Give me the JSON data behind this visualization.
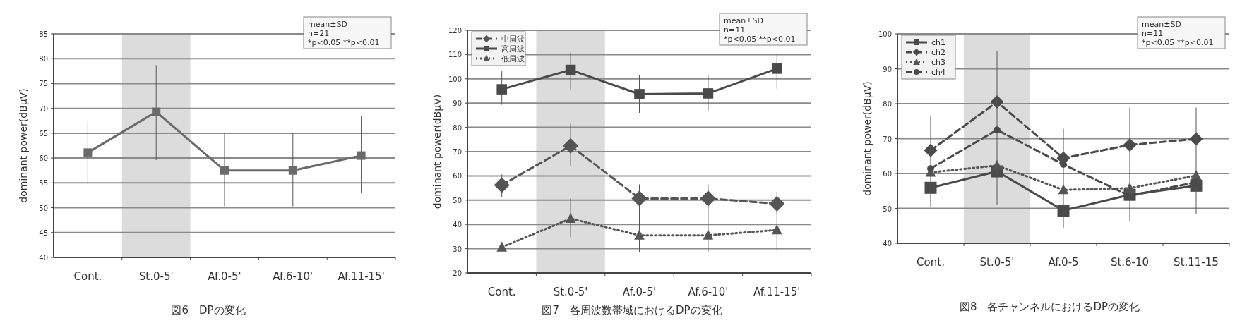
{
  "chart_data": [
    {
      "type": "line",
      "title": "図6　DPの変化",
      "ylabel": "dominant power(dBμV)",
      "categories": [
        "Cont.",
        "St.0-5'",
        "Af.0-5'",
        "Af.6-10'",
        "Af.11-15'"
      ],
      "ylim": [
        40,
        85
      ],
      "yticks": [
        40,
        45,
        50,
        55,
        60,
        65,
        70,
        75,
        80,
        85
      ],
      "grid": "y",
      "annotations": [
        "mean±SD",
        "n=21",
        "*p<0.05 **p<0.01"
      ],
      "bands": [
        {
          "axis": "x",
          "from": "St.0-5'",
          "to": "St.0-5'",
          "color": "#dcdcdc"
        }
      ],
      "series": [
        {
          "color": "#6a6a6a",
          "marker": "square",
          "line_style": "solid",
          "values": [
            61.1,
            69.3,
            57.5,
            57.5,
            60.5
          ],
          "errors": [
            [
              54.8,
              67.4
            ],
            [
              59.6,
              78.7
            ],
            [
              50.3,
              65
            ],
            [
              50.3,
              65
            ],
            [
              52.9,
              68.5
            ]
          ]
        }
      ]
    },
    {
      "type": "line",
      "title": "図7　各周波数帯域におけるDPの変化",
      "ylabel": "dominant power(dBμV)",
      "categories": [
        "Cont.",
        "St.0-5'",
        "Af.0-5'",
        "Af.6-10'",
        "Af.11-15'"
      ],
      "ylim": [
        20,
        120
      ],
      "yticks": [
        20,
        30,
        40,
        50,
        60,
        70,
        80,
        90,
        100,
        110,
        120
      ],
      "grid": "y",
      "legend": "top left",
      "annotations": [
        "mean±SD",
        "n=11",
        "*p<0.05 **p<0.01"
      ],
      "bands": [
        {
          "axis": "x",
          "from": "St.0-5'",
          "to": "St.0-5'",
          "color": "#dcdcdc"
        }
      ],
      "series": [
        {
          "name": "中周波",
          "color": "#555555",
          "marker": "diamond",
          "line_style": "dashed",
          "values": [
            56.2,
            72.4,
            50.7,
            50.7,
            48.5
          ],
          "errors": [
            [
              51.2,
              60.6
            ],
            [
              63.9,
              81.6
            ],
            [
              43,
              56.5
            ],
            [
              43,
              56.5
            ],
            [
              44.1,
              53.4
            ]
          ]
        },
        {
          "name": "高周波",
          "color": "#4a4a4a",
          "marker": "square",
          "line_style": "solid",
          "values": [
            95.7,
            103.7,
            93.7,
            94,
            104.2
          ],
          "errors": [
            [
              89.3,
              103.1
            ],
            [
              95.7,
              110.8
            ],
            [
              86,
              101.5
            ],
            [
              86.9,
              101.5
            ],
            [
              95.9,
              110.3
            ]
          ]
        },
        {
          "name": "低周波",
          "color": "#555555",
          "marker": "triangle",
          "line_style": "dotted",
          "values": [
            30.6,
            42.4,
            35.5,
            35.5,
            37.7
          ],
          "errors": [
            null,
            [
              34.7,
              50.7
            ],
            [
              28.6,
              43
            ],
            [
              28.6,
              43
            ],
            [
              29.2,
              45.2
            ]
          ]
        }
      ]
    },
    {
      "type": "line",
      "title": "図8　各チャンネルにおけるDPの変化",
      "ylabel": "dominant power(dBμV)",
      "categories": [
        "Cont.",
        "St.0-5'",
        "Af.0-5",
        "St.6-10",
        "St.11-15"
      ],
      "ylim": [
        40,
        100
      ],
      "yticks": [
        40,
        50,
        60,
        70,
        80,
        90,
        100
      ],
      "grid": "y",
      "legend": "top left",
      "annotations": [
        "mean±SD",
        "n=11",
        "*p<0.05 **p<0.01"
      ],
      "bands": [
        {
          "axis": "x",
          "from": "St.0-5'",
          "to": "St.0-5'",
          "color": "#dcdcdc"
        }
      ],
      "series": [
        {
          "name": "ch1",
          "color": "#4a4a4a",
          "marker": "square",
          "line_style": "solid",
          "values": [
            55.9,
            60.6,
            49.4,
            53.9,
            56.5
          ]
        },
        {
          "name": "ch2",
          "color": "#4a4a4a",
          "marker": "diamond",
          "line_style": "dashed",
          "values": [
            66.6,
            80.5,
            64.4,
            68.2,
            69.9
          ]
        },
        {
          "name": "ch3",
          "color": "#555555",
          "marker": "triangle",
          "line_style": "dotted",
          "values": [
            60.3,
            62.3,
            55.3,
            55.8,
            59.4
          ]
        },
        {
          "name": "ch4",
          "color": "#4a4a4a",
          "marker": "circle",
          "line_style": "dashed",
          "values": [
            61.4,
            72.5,
            62.6,
            53.6,
            57.5
          ],
          "errors": [
            [
              50.5,
              76.6
            ],
            [
              50.9,
              95
            ],
            [
              44.4,
              72.8
            ],
            [
              46.3,
              78.9
            ],
            [
              48.3,
              78.9
            ]
          ]
        }
      ]
    }
  ]
}
